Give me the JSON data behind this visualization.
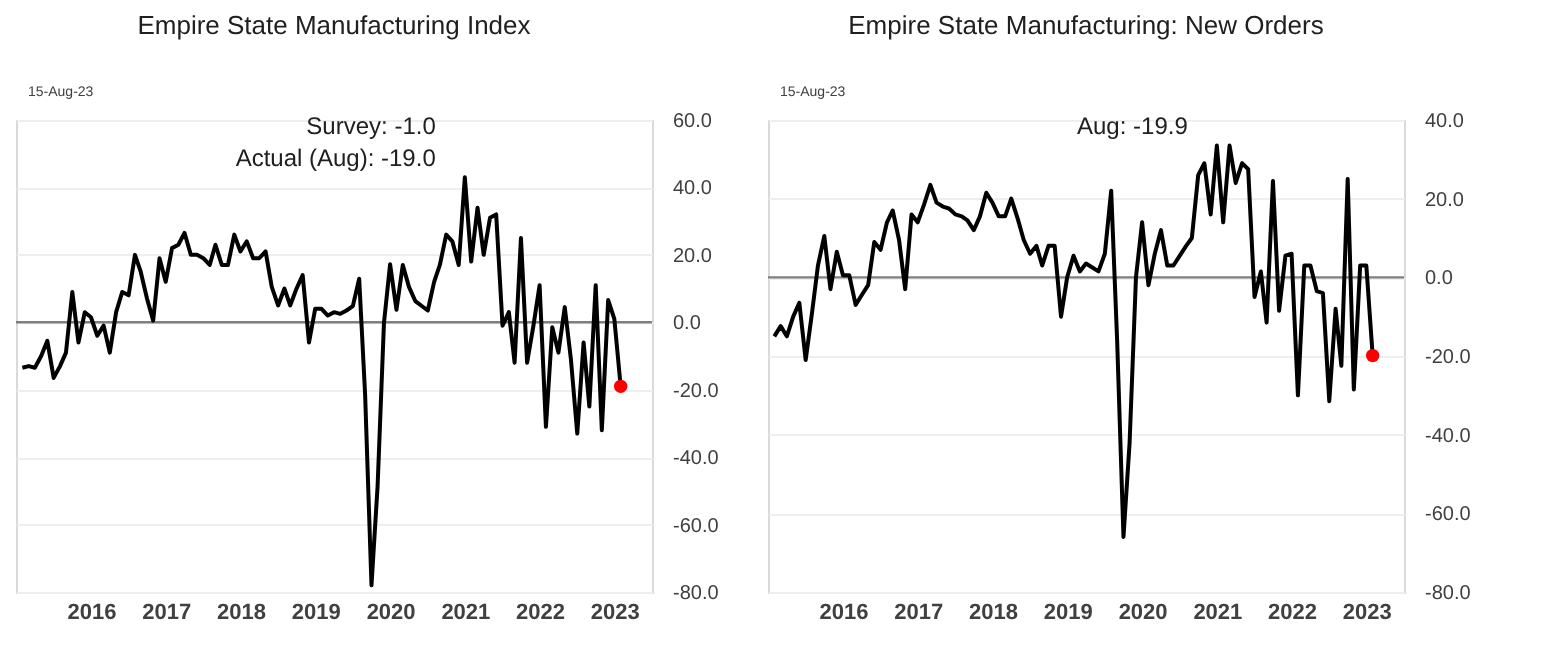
{
  "chart_data": [
    {
      "type": "line",
      "title": "Empire State Manufacturing Index",
      "annotations": [
        "15-Aug-23",
        "Survey:  -1.0",
        "Actual (Aug):  -19.0"
      ],
      "x": [
        "2015-08",
        "2015-09",
        "2015-10",
        "2015-11",
        "2015-12",
        "2016-01",
        "2016-02",
        "2016-03",
        "2016-04",
        "2016-05",
        "2016-06",
        "2016-07",
        "2016-08",
        "2016-09",
        "2016-10",
        "2016-11",
        "2016-12",
        "2017-01",
        "2017-02",
        "2017-03",
        "2017-04",
        "2017-05",
        "2017-06",
        "2017-07",
        "2017-08",
        "2017-09",
        "2017-10",
        "2017-11",
        "2017-12",
        "2018-01",
        "2018-02",
        "2018-03",
        "2018-04",
        "2018-05",
        "2018-06",
        "2018-07",
        "2018-08",
        "2018-09",
        "2018-10",
        "2018-11",
        "2018-12",
        "2019-01",
        "2019-02",
        "2019-03",
        "2019-04",
        "2019-05",
        "2019-06",
        "2019-07",
        "2019-08",
        "2019-09",
        "2019-10",
        "2019-11",
        "2019-12",
        "2020-01",
        "2020-02",
        "2020-03",
        "2020-04",
        "2020-05",
        "2020-06",
        "2020-07",
        "2020-08",
        "2020-09",
        "2020-10",
        "2020-11",
        "2020-12",
        "2021-01",
        "2021-02",
        "2021-03",
        "2021-04",
        "2021-05",
        "2021-06",
        "2021-07",
        "2021-08",
        "2021-09",
        "2021-10",
        "2021-11",
        "2021-12",
        "2022-01",
        "2022-02",
        "2022-03",
        "2022-04",
        "2022-05",
        "2022-06",
        "2022-07",
        "2022-08",
        "2022-09",
        "2022-10",
        "2022-11",
        "2022-12",
        "2023-01",
        "2023-02",
        "2023-03",
        "2023-04",
        "2023-05",
        "2023-06",
        "2023-07",
        "2023-08"
      ],
      "series": [
        {
          "color": "#000000",
          "values": [
            -13.5,
            -13,
            -13.5,
            -10,
            -5.5,
            -16.5,
            -13,
            -9,
            9,
            -6,
            3,
            1.5,
            -4,
            -1,
            -9,
            3,
            9,
            8,
            20,
            15,
            7,
            0.5,
            19,
            12,
            22,
            23,
            26.5,
            20,
            20,
            19,
            17,
            23,
            17,
            17,
            26,
            21,
            24,
            19,
            19,
            21,
            10.5,
            5,
            10,
            5,
            10,
            14,
            -6,
            4,
            4,
            2,
            3,
            2.5,
            3.5,
            4.8,
            12.9,
            -21.5,
            -78,
            -48.5,
            -0.2,
            17.2,
            3.7,
            17,
            10.5,
            6.3,
            4.9,
            3.5,
            12,
            17,
            26,
            24,
            17,
            43,
            18,
            34,
            20,
            31,
            32,
            -1,
            3,
            -12,
            25,
            -12,
            -1,
            11,
            -31,
            -1.5,
            -9,
            4.5,
            -11,
            -33,
            -6,
            -25,
            11,
            -32,
            6.6,
            1,
            -19
          ]
        },
        {
          "type": "scatter",
          "color": "#ff0000",
          "x": [
            "2023-08"
          ],
          "values": [
            -19.0
          ]
        }
      ],
      "xlim": [
        "2015-07",
        "2024-01"
      ],
      "xticks": [
        {
          "value": "2016-07",
          "label": "2016"
        },
        {
          "value": "2017-07",
          "label": "2017"
        },
        {
          "value": "2018-07",
          "label": "2018"
        },
        {
          "value": "2019-07",
          "label": "2019"
        },
        {
          "value": "2020-07",
          "label": "2020"
        },
        {
          "value": "2021-07",
          "label": "2021"
        },
        {
          "value": "2022-07",
          "label": "2022"
        },
        {
          "value": "2023-07",
          "label": "2023"
        }
      ],
      "ylim": [
        -80,
        60
      ],
      "yticks": [
        {
          "value": -80,
          "label": "-80.0"
        },
        {
          "value": -60,
          "label": "-60.0"
        },
        {
          "value": -40,
          "label": "-40.0"
        },
        {
          "value": -20,
          "label": "-20.0"
        },
        {
          "value": 0,
          "label": "0.0"
        },
        {
          "value": 20,
          "label": "20.0"
        },
        {
          "value": 40,
          "label": "40.0"
        },
        {
          "value": 60,
          "label": "60.0"
        }
      ],
      "ref_lines": [
        {
          "axis": "y",
          "value": 0,
          "color": "#7f7f7f"
        }
      ],
      "grid": "y"
    },
    {
      "type": "line",
      "title": "Empire State Manufacturing: New Orders",
      "annotations": [
        "15-Aug-23",
        "Aug:    -19.9"
      ],
      "series": [
        {
          "color": "#000000",
          "x": [
            "2015-08",
            "2015-09",
            "2015-10",
            "2015-11",
            "2015-12",
            "2016-01",
            "2016-02",
            "2016-03",
            "2016-04",
            "2016-05",
            "2016-06",
            "2016-07",
            "2016-08",
            "2016-09",
            "2016-10",
            "2016-11",
            "2016-12",
            "2017-01",
            "2017-02",
            "2017-03",
            "2017-04",
            "2017-05",
            "2017-06",
            "2017-07",
            "2017-08",
            "2017-09",
            "2017-10",
            "2017-11",
            "2017-12",
            "2018-01",
            "2018-02",
            "2018-03",
            "2018-04",
            "2018-05",
            "2018-06",
            "2018-07",
            "2018-08",
            "2018-09",
            "2018-10",
            "2018-11",
            "2018-12",
            "2019-01",
            "2019-02",
            "2019-03",
            "2019-04",
            "2019-05",
            "2019-06",
            "2019-07",
            "2019-08",
            "2019-09",
            "2019-10",
            "2019-11",
            "2019-12",
            "2020-01",
            "2020-02",
            "2020-03",
            "2020-04",
            "2020-05",
            "2020-06",
            "2020-07",
            "2020-08",
            "2020-09",
            "2020-10",
            "2020-11",
            "2020-12",
            "2021-01",
            "2021-02",
            "2021-03",
            "2021-04",
            "2021-05",
            "2021-06",
            "2021-07",
            "2021-08",
            "2021-09",
            "2021-10",
            "2021-11",
            "2021-12",
            "2022-01",
            "2022-02",
            "2022-03",
            "2022-04",
            "2022-05",
            "2022-06",
            "2022-07",
            "2022-08",
            "2022-09",
            "2022-10",
            "2022-11",
            "2022-12",
            "2023-01",
            "2023-02",
            "2023-03",
            "2023-04",
            "2023-05",
            "2023-06",
            "2023-07",
            "2023-08"
          ],
          "values": [
            -15,
            -12.4,
            -15,
            -10,
            -6.5,
            -21,
            -9,
            3,
            10.5,
            -3,
            6.5,
            0.5,
            0.5,
            -7,
            -4.5,
            -2,
            9,
            7,
            14,
            17,
            9.5,
            -3,
            16,
            14,
            18.5,
            23.5,
            19,
            18,
            17.5,
            16,
            15.5,
            14.5,
            12,
            15.5,
            21.5,
            19,
            15.5,
            15.5,
            20,
            15,
            9.5,
            6,
            8,
            3,
            8,
            8,
            -10,
            0,
            5.5,
            1.5,
            3.5,
            2.5,
            1.5,
            6,
            22,
            -16,
            -66,
            -42,
            0,
            14,
            -2,
            6,
            12,
            3,
            3,
            5.5,
            8,
            10,
            26,
            29,
            16,
            33.5,
            14,
            33.5,
            24,
            29,
            27.5,
            -5,
            1.5,
            -11.5,
            24.5,
            -8.5,
            5.5,
            6,
            -30,
            3,
            3,
            -3.5,
            -4,
            -31.5,
            -8,
            -22.5,
            25,
            -28.5,
            3,
            3,
            -19.9
          ]
        },
        {
          "type": "scatter",
          "color": "#ff0000",
          "x": [
            "2023-08"
          ],
          "values": [
            -19.9
          ]
        }
      ],
      "xlim": [
        "2015-07",
        "2024-01"
      ],
      "xticks": [
        {
          "value": "2016-07",
          "label": "2016"
        },
        {
          "value": "2017-07",
          "label": "2017"
        },
        {
          "value": "2018-07",
          "label": "2018"
        },
        {
          "value": "2019-07",
          "label": "2019"
        },
        {
          "value": "2020-07",
          "label": "2020"
        },
        {
          "value": "2021-07",
          "label": "2021"
        },
        {
          "value": "2022-07",
          "label": "2022"
        },
        {
          "value": "2023-07",
          "label": "2023"
        }
      ],
      "ylim": [
        -80,
        40
      ],
      "yticks": [
        {
          "value": -80,
          "label": "-80.0"
        },
        {
          "value": -60,
          "label": "-60.0"
        },
        {
          "value": -40,
          "label": "-40.0"
        },
        {
          "value": -20,
          "label": "-20.0"
        },
        {
          "value": 0,
          "label": "0.0"
        },
        {
          "value": 20,
          "label": "20.0"
        },
        {
          "value": 40,
          "label": "40.0"
        }
      ],
      "ref_lines": [
        {
          "axis": "y",
          "value": 0,
          "color": "#7f7f7f"
        }
      ],
      "grid": "y"
    }
  ]
}
